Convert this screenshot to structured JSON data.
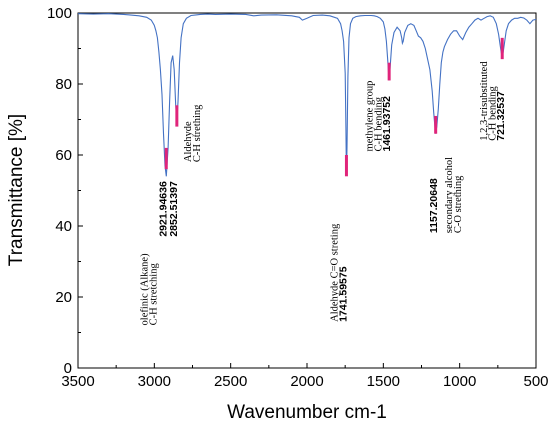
{
  "chart_data": {
    "type": "line",
    "xlabel": "Wavenumber cm-1",
    "ylabel": "Transmittance [%]",
    "xlim": [
      3500,
      500
    ],
    "ylim": [
      0,
      100
    ],
    "x_reversed": true,
    "grid": false,
    "x_ticks": [
      3500,
      3000,
      2500,
      2000,
      1500,
      1000,
      500
    ],
    "y_ticks": [
      0,
      20,
      40,
      60,
      80,
      100
    ],
    "line_color": "#4472c4",
    "marker_color": "#e0247a",
    "series": [
      {
        "x": [
          3500,
          3400,
          3300,
          3200,
          3100,
          3050,
          3020,
          3000,
          2990,
          2980,
          2970,
          2960,
          2950,
          2940,
          2930,
          2921.9,
          2910,
          2900,
          2890,
          2880,
          2870,
          2860,
          2852.5,
          2845,
          2835,
          2825,
          2810,
          2790,
          2760,
          2720,
          2700,
          2650,
          2600,
          2500,
          2400,
          2350,
          2300,
          2200,
          2100,
          2050,
          2030,
          2000,
          1960,
          1900,
          1850,
          1800,
          1780,
          1770,
          1760,
          1750,
          1745,
          1741.6,
          1738,
          1732,
          1725,
          1715,
          1700,
          1680,
          1650,
          1620,
          1600,
          1580,
          1560,
          1540,
          1520,
          1500,
          1490,
          1480,
          1470,
          1465,
          1461.9,
          1455,
          1445,
          1430,
          1410,
          1390,
          1380,
          1375,
          1370,
          1360,
          1340,
          1320,
          1300,
          1285,
          1270,
          1255,
          1240,
          1225,
          1210,
          1195,
          1180,
          1170,
          1160,
          1157.2,
          1150,
          1140,
          1130,
          1120,
          1110,
          1100,
          1080,
          1060,
          1040,
          1020,
          1000,
          980,
          960,
          940,
          920,
          900,
          880,
          860,
          840,
          820,
          800,
          780,
          760,
          745,
          735,
          728,
          721.3,
          715,
          705,
          695,
          680,
          660,
          640,
          620,
          600,
          580,
          560,
          540,
          520,
          500
        ],
        "y": [
          99.8,
          99.7,
          99.8,
          99.6,
          99.2,
          98.8,
          98.0,
          96.5,
          95.0,
          93.0,
          89.0,
          84.0,
          77.0,
          66.0,
          57.0,
          54.0,
          62.0,
          75.0,
          86.0,
          88.0,
          84.0,
          74.0,
          69.5,
          75.0,
          86.0,
          93.0,
          97.0,
          98.5,
          99.3,
          99.5,
          99.6,
          99.7,
          99.6,
          99.7,
          99.6,
          99.2,
          99.4,
          99.5,
          99.2,
          98.8,
          98.0,
          98.5,
          99.3,
          99.4,
          99.2,
          98.5,
          97.0,
          95.0,
          92.0,
          83.0,
          68.0,
          54.5,
          62.0,
          82.0,
          93.0,
          97.0,
          98.5,
          99.0,
          99.2,
          99.3,
          99.3,
          99.3,
          99.2,
          99.0,
          98.5,
          97.5,
          95.5,
          92.0,
          86.0,
          82.5,
          81.0,
          85.0,
          91.0,
          94.5,
          96.0,
          95.0,
          93.0,
          91.5,
          92.0,
          94.5,
          96.5,
          97.0,
          96.5,
          95.0,
          93.5,
          93.0,
          92.0,
          90.0,
          87.0,
          84.0,
          78.0,
          72.0,
          67.0,
          66.0,
          68.0,
          73.0,
          80.0,
          86.0,
          89.0,
          90.5,
          92.5,
          94.0,
          95.0,
          95.0,
          93.5,
          92.5,
          94.5,
          96.0,
          97.0,
          98.0,
          98.5,
          98.0,
          98.5,
          99.0,
          99.2,
          98.8,
          97.0,
          94.0,
          91.0,
          89.0,
          87.5,
          89.0,
          92.0,
          95.0,
          97.0,
          98.0,
          98.5,
          98.5,
          98.8,
          98.6,
          98.0,
          97.0,
          98.0,
          98.2
        ]
      }
    ],
    "peak_markers": [
      {
        "x": 2921.9,
        "y_from": 62,
        "y_to": 56
      },
      {
        "x": 2852.5,
        "y_from": 74,
        "y_to": 68
      },
      {
        "x": 1741.6,
        "y_from": 60,
        "y_to": 54
      },
      {
        "x": 1461.9,
        "y_from": 86,
        "y_to": 81
      },
      {
        "x": 1157.2,
        "y_from": 71,
        "y_to": 66
      },
      {
        "x": 721.3,
        "y_from": 93,
        "y_to": 87
      }
    ],
    "annotations": [
      {
        "x": 2920,
        "y": 37,
        "kind": "peak",
        "text": "2921.94636"
      },
      {
        "x": 2850,
        "y": 37,
        "kind": "peak",
        "text": "2852.51397"
      },
      {
        "x": 3045,
        "y": 12,
        "kind": "note",
        "text": "olefinic (Alkane)"
      },
      {
        "x": 2985,
        "y": 12,
        "kind": "note",
        "text": "C-H stretching"
      },
      {
        "x": 2760,
        "y": 58,
        "kind": "note",
        "text": "Aldehyde"
      },
      {
        "x": 2700,
        "y": 58,
        "kind": "note",
        "text": "C-H strething"
      },
      {
        "x": 1800,
        "y": 13,
        "kind": "note",
        "text": "Aldehyde C=O streting"
      },
      {
        "x": 1740,
        "y": 13,
        "kind": "peak",
        "text": "1741.59575"
      },
      {
        "x": 1570,
        "y": 61,
        "kind": "note",
        "text": "methylene group"
      },
      {
        "x": 1510,
        "y": 61,
        "kind": "note",
        "text": "C-H bending"
      },
      {
        "x": 1455,
        "y": 61,
        "kind": "peak",
        "text": "1461.93752"
      },
      {
        "x": 1150,
        "y": 38,
        "kind": "peak",
        "text": "1157.20648"
      },
      {
        "x": 1050,
        "y": 38,
        "kind": "note",
        "text": "secondary alcohol"
      },
      {
        "x": 990,
        "y": 38,
        "kind": "note",
        "text": "C-O strething"
      },
      {
        "x": 820,
        "y": 64,
        "kind": "note",
        "text": "1,2,3-trisubstituted"
      },
      {
        "x": 765,
        "y": 64,
        "kind": "note",
        "text": "C-H bending"
      },
      {
        "x": 710,
        "y": 64,
        "kind": "peak",
        "text": "721.32537"
      }
    ]
  }
}
